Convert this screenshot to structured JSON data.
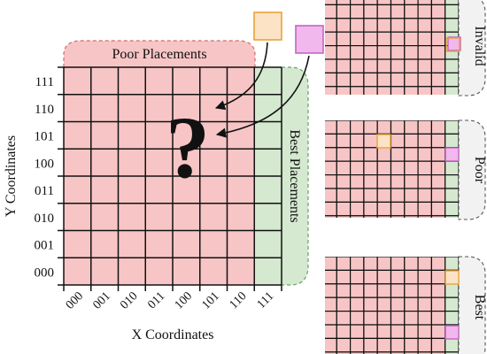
{
  "main_grid": {
    "poor_region_label": "Poor Placements",
    "best_region_label": "Best Placements",
    "question_mark": "?",
    "y_axis_label": "Y Coordinates",
    "x_axis_label": "X Coordinates",
    "y_ticks": [
      "111",
      "110",
      "101",
      "100",
      "011",
      "010",
      "001",
      "000"
    ],
    "x_ticks": [
      "000",
      "001",
      "010",
      "011",
      "100",
      "101",
      "110",
      "111"
    ]
  },
  "candidate_blocks": [
    {
      "name": "orange-candidate-block",
      "fill": "#fde3c5",
      "stroke": "#e8a33a"
    },
    {
      "name": "pink-candidate-block",
      "fill": "#f0b8ec",
      "stroke": "#c466c2"
    }
  ],
  "examples": [
    {
      "label": "Invalid"
    },
    {
      "label": "Poor"
    },
    {
      "label": "Best"
    }
  ],
  "colors": {
    "poor_fill": "#f7c5c5",
    "poor_border": "#d66a6a",
    "best_fill": "#d5e8d0",
    "best_border": "#6aa06a",
    "side_tab_fill": "#f2f2f2",
    "grid_line": "#111111"
  }
}
